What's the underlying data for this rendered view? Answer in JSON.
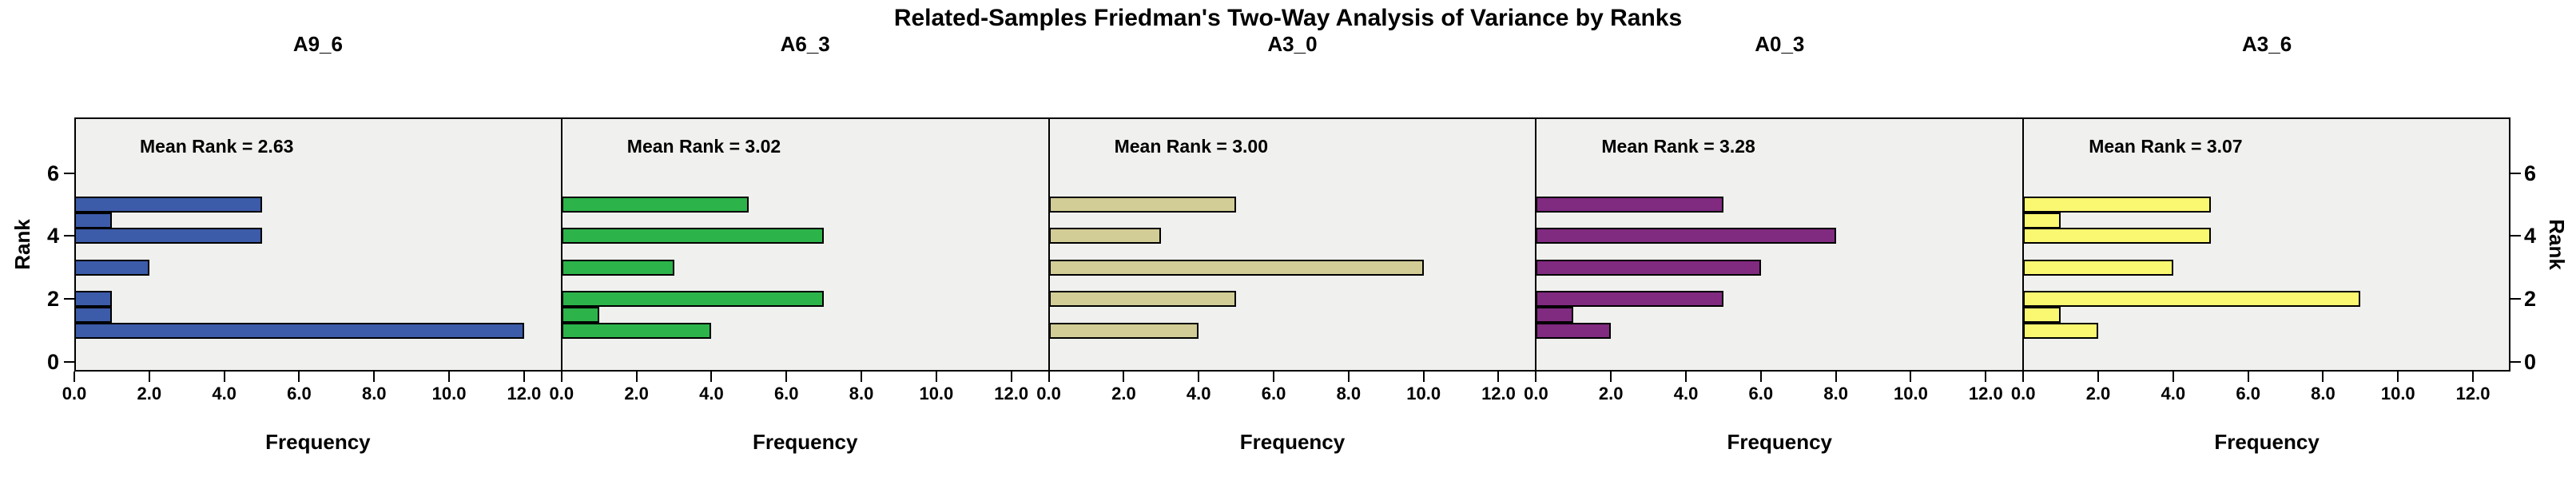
{
  "chart_data": {
    "type": "bar",
    "orientation": "horizontal",
    "layout": "small-multiples-row",
    "title": "Related-Samples Friedman's Two-Way Analysis of Variance by Ranks",
    "xlabel": "Frequency",
    "ylabel": "Rank",
    "xlim": [
      0,
      13
    ],
    "ylim": [
      -0.3,
      7.8
    ],
    "x_ticks": [
      0,
      2,
      4,
      6,
      8,
      10,
      12
    ],
    "x_tick_labels": [
      "0.0",
      "2.0",
      "4.0",
      "6.0",
      "8.0",
      "10.0",
      "12.0"
    ],
    "y_ticks": [
      0,
      2,
      4,
      6
    ],
    "y_tick_labels": [
      "0",
      "2",
      "4",
      "6"
    ],
    "grid": false,
    "legend": "none",
    "plot_background": "#F0F0EE",
    "bar_border_color": "#000000",
    "n_per_panel": 27,
    "panels": [
      {
        "variable": "A9_6",
        "mean_rank": 2.63,
        "mean_rank_label": "Mean Rank = 2.63",
        "color": "#3C5BA9",
        "bars": [
          {
            "rank": 5,
            "frequency": 5
          },
          {
            "rank": 4.5,
            "frequency": 1
          },
          {
            "rank": 4,
            "frequency": 5
          },
          {
            "rank": 3,
            "frequency": 2
          },
          {
            "rank": 2,
            "frequency": 1
          },
          {
            "rank": 1.5,
            "frequency": 1
          },
          {
            "rank": 1,
            "frequency": 12
          }
        ]
      },
      {
        "variable": "A6_3",
        "mean_rank": 3.02,
        "mean_rank_label": "Mean Rank = 3.02",
        "color": "#2CB34A",
        "bars": [
          {
            "rank": 5,
            "frequency": 5
          },
          {
            "rank": 4,
            "frequency": 7
          },
          {
            "rank": 3,
            "frequency": 3
          },
          {
            "rank": 2,
            "frequency": 7
          },
          {
            "rank": 1.5,
            "frequency": 1
          },
          {
            "rank": 1,
            "frequency": 4
          }
        ]
      },
      {
        "variable": "A3_0",
        "mean_rank": 3.0,
        "mean_rank_label": "Mean Rank = 3.00",
        "color": "#D2CD96",
        "bars": [
          {
            "rank": 5,
            "frequency": 5
          },
          {
            "rank": 4,
            "frequency": 3
          },
          {
            "rank": 3,
            "frequency": 10
          },
          {
            "rank": 2,
            "frequency": 5
          },
          {
            "rank": 1,
            "frequency": 4
          }
        ]
      },
      {
        "variable": "A0_3",
        "mean_rank": 3.28,
        "mean_rank_label": "Mean Rank = 3.28",
        "color": "#802A80",
        "bars": [
          {
            "rank": 5,
            "frequency": 5
          },
          {
            "rank": 4,
            "frequency": 8
          },
          {
            "rank": 3,
            "frequency": 6
          },
          {
            "rank": 2,
            "frequency": 5
          },
          {
            "rank": 1.5,
            "frequency": 1
          },
          {
            "rank": 1,
            "frequency": 2
          }
        ]
      },
      {
        "variable": "A3_6",
        "mean_rank": 3.07,
        "mean_rank_label": "Mean Rank = 3.07",
        "color": "#FAF771",
        "bars": [
          {
            "rank": 5,
            "frequency": 5
          },
          {
            "rank": 4.5,
            "frequency": 1
          },
          {
            "rank": 4,
            "frequency": 5
          },
          {
            "rank": 3,
            "frequency": 4
          },
          {
            "rank": 2,
            "frequency": 9
          },
          {
            "rank": 1.5,
            "frequency": 1
          },
          {
            "rank": 1,
            "frequency": 2
          }
        ]
      }
    ]
  }
}
